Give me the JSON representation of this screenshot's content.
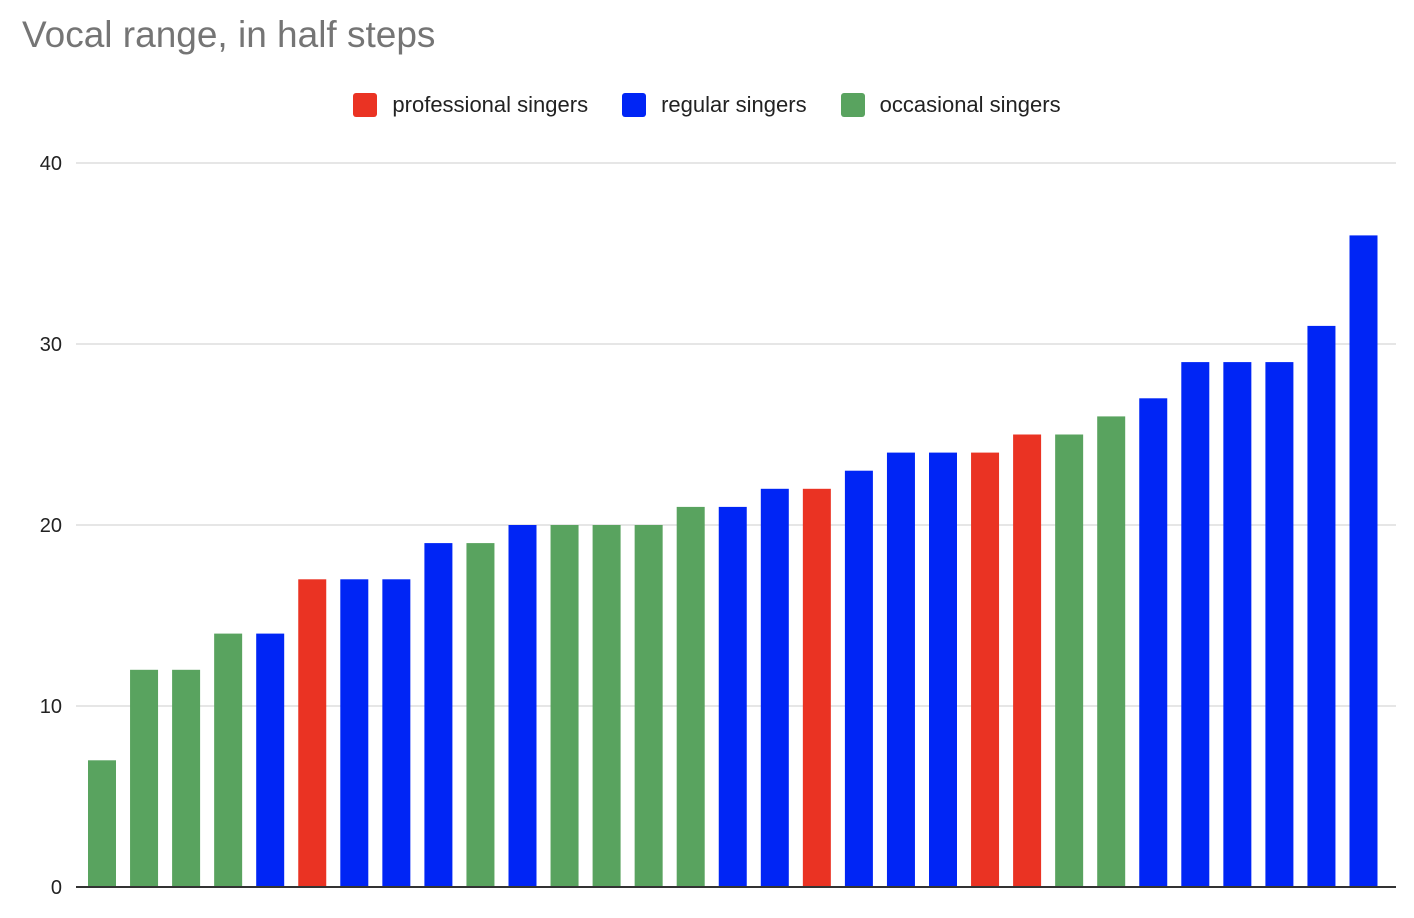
{
  "chart_data": {
    "type": "bar",
    "title": "Vocal range, in half steps",
    "xlabel": "",
    "ylabel": "",
    "ylim": [
      0,
      40
    ],
    "yticks": [
      0,
      10,
      20,
      30,
      40
    ],
    "grid": true,
    "legend_position": "top-center",
    "series": [
      {
        "name": "professional singers",
        "color": "#ea3323"
      },
      {
        "name": "regular singers",
        "color": "#0025f5"
      },
      {
        "name": "occasional singers",
        "color": "#59a35f"
      }
    ],
    "bars": [
      {
        "series": "occasional singers",
        "value": 7
      },
      {
        "series": "occasional singers",
        "value": 12
      },
      {
        "series": "occasional singers",
        "value": 12
      },
      {
        "series": "occasional singers",
        "value": 14
      },
      {
        "series": "regular singers",
        "value": 14
      },
      {
        "series": "professional singers",
        "value": 17
      },
      {
        "series": "regular singers",
        "value": 17
      },
      {
        "series": "regular singers",
        "value": 17
      },
      {
        "series": "regular singers",
        "value": 19
      },
      {
        "series": "occasional singers",
        "value": 19
      },
      {
        "series": "regular singers",
        "value": 20
      },
      {
        "series": "occasional singers",
        "value": 20
      },
      {
        "series": "occasional singers",
        "value": 20
      },
      {
        "series": "occasional singers",
        "value": 20
      },
      {
        "series": "occasional singers",
        "value": 21
      },
      {
        "series": "regular singers",
        "value": 21
      },
      {
        "series": "regular singers",
        "value": 22
      },
      {
        "series": "professional singers",
        "value": 22
      },
      {
        "series": "regular singers",
        "value": 23
      },
      {
        "series": "regular singers",
        "value": 24
      },
      {
        "series": "regular singers",
        "value": 24
      },
      {
        "series": "professional singers",
        "value": 24
      },
      {
        "series": "professional singers",
        "value": 25
      },
      {
        "series": "occasional singers",
        "value": 25
      },
      {
        "series": "occasional singers",
        "value": 26
      },
      {
        "series": "regular singers",
        "value": 27
      },
      {
        "series": "regular singers",
        "value": 29
      },
      {
        "series": "regular singers",
        "value": 29
      },
      {
        "series": "regular singers",
        "value": 29
      },
      {
        "series": "regular singers",
        "value": 31
      },
      {
        "series": "regular singers",
        "value": 36
      }
    ]
  }
}
